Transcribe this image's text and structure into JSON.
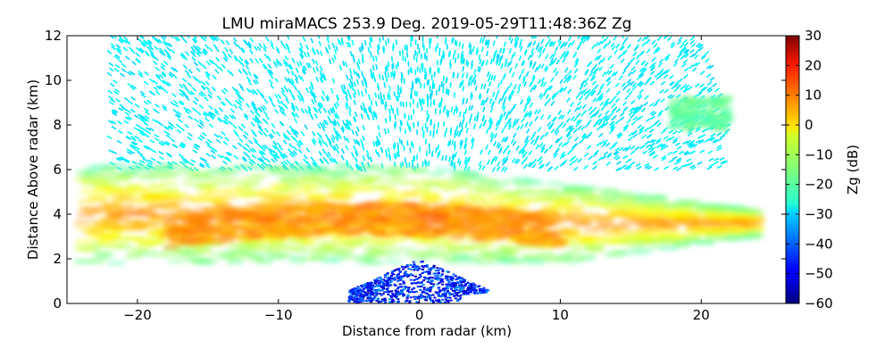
{
  "chart_data": {
    "type": "heatmap",
    "title": "LMU miraMACS 253.9 Deg. 2019-05-29T11:48:36Z  Zg",
    "xlabel": "Distance from radar (km)",
    "ylabel": "Distance Above radar  (km)",
    "xlim": [
      -25,
      26
    ],
    "ylim": [
      0,
      12
    ],
    "x_ticks": [
      "−20",
      "−10",
      "0",
      "10",
      "20"
    ],
    "x_tick_values": [
      -20,
      -10,
      0,
      10,
      20
    ],
    "y_ticks": [
      "0",
      "2",
      "4",
      "6",
      "8",
      "10",
      "12"
    ],
    "y_tick_values": [
      0,
      2,
      4,
      6,
      8,
      10,
      12
    ],
    "colorbar": {
      "label": "Zg (dB)",
      "range": [
        -60,
        30
      ],
      "ticks": [
        "30",
        "20",
        "10",
        "0",
        "−10",
        "−20",
        "−30",
        "−40",
        "−50",
        "−60"
      ],
      "tick_values": [
        30,
        20,
        10,
        0,
        -10,
        -20,
        -30,
        -40,
        -50,
        -60
      ],
      "colormap": "jet"
    },
    "grid": false,
    "scan_extent_km": {
      "left_x": -24,
      "right_x": 24,
      "right_elevation_low_km": 0,
      "right_elevation_high_km": 4.2
    },
    "features": [
      {
        "name": "cloud layer",
        "x_range": [
          -24,
          24
        ],
        "height_range_km": [
          1.8,
          6.2
        ],
        "reflectivity_dB": [
          -15,
          10
        ]
      },
      {
        "name": "bright core",
        "x_range": [
          -18,
          10
        ],
        "height_range_km": [
          2.5,
          4.5
        ],
        "reflectivity_dB": [
          0,
          12
        ]
      },
      {
        "name": "upper noise",
        "x_range": [
          -22,
          22
        ],
        "height_range_km": [
          6,
          12
        ],
        "reflectivity_dB": [
          -30,
          -25
        ]
      },
      {
        "name": "lower clear air",
        "x_range": [
          -5,
          5
        ],
        "height_range_km": [
          0,
          2
        ],
        "reflectivity_dB": [
          -55,
          -35
        ]
      },
      {
        "name": "isolated cloud",
        "x_range": [
          18,
          22
        ],
        "height_range_km": [
          7.8,
          9.2
        ],
        "reflectivity_dB": [
          -20,
          -15
        ]
      }
    ]
  }
}
